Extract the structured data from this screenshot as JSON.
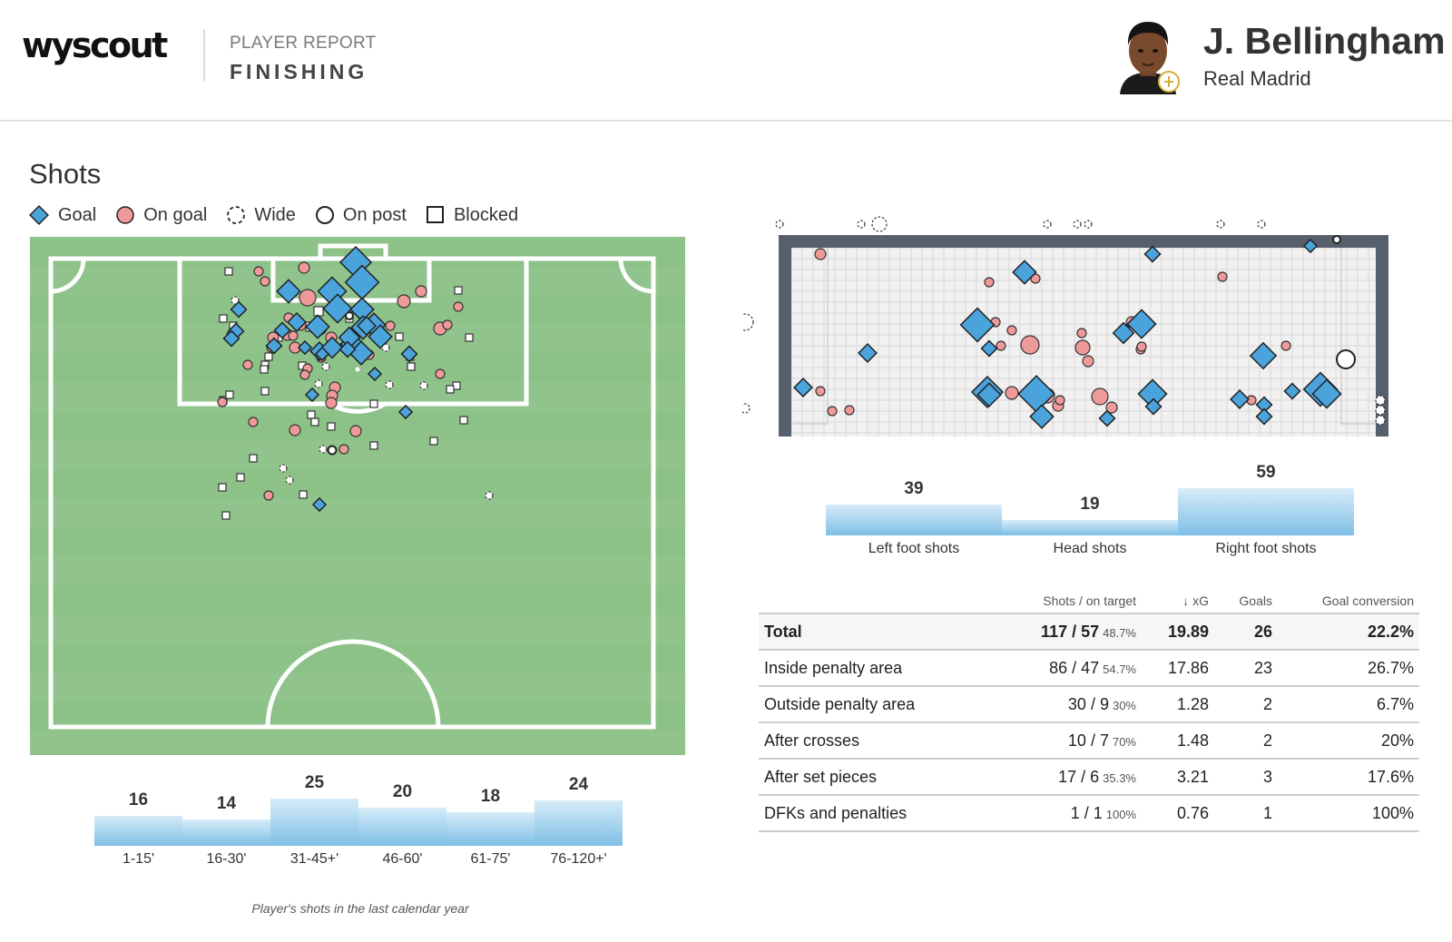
{
  "header": {
    "logo": "wyscout",
    "report_label": "PLAYER REPORT",
    "report_title": "FINISHING",
    "player_name": "J. Bellingham",
    "player_team": "Real Madrid"
  },
  "shots": {
    "title": "Shots",
    "legend": [
      {
        "label": "Goal",
        "icon": "diamond-icon",
        "color": "#4ba3dc"
      },
      {
        "label": "On goal",
        "icon": "circle-icon",
        "color": "#ef9a9a"
      },
      {
        "label": "Wide",
        "icon": "dashed-circle-icon",
        "color": "#333333"
      },
      {
        "label": "On post",
        "icon": "ring-icon",
        "color": "#333333"
      },
      {
        "label": "Blocked",
        "icon": "square-icon",
        "color": "#333333"
      }
    ],
    "footnote": "Player's shots in the last calendar year"
  },
  "colors": {
    "goal": "#4ba3dc",
    "on_goal": "#ef9a9a",
    "pitch": "#8dc28a",
    "goal_frame": "#56606d"
  },
  "chart_data": [
    {
      "type": "bar",
      "title": "",
      "categories": [
        "1-15'",
        "16-30'",
        "31-45+'",
        "46-60'",
        "61-75'",
        "76-120+'"
      ],
      "values": [
        16,
        14,
        25,
        20,
        18,
        24
      ],
      "ylim": [
        0,
        25
      ]
    },
    {
      "type": "bar",
      "title": "",
      "categories": [
        "Left foot shots",
        "Head shots",
        "Right foot shots"
      ],
      "values": [
        39,
        19,
        59
      ],
      "ylim": [
        0,
        59
      ]
    }
  ],
  "table": {
    "headers": [
      "Shots / on target",
      "↓ xG",
      "Goals",
      "Goal conversion"
    ],
    "rows": [
      {
        "label": "Total",
        "shots": "117 / 57",
        "pct": "48.7%",
        "xg": "19.89",
        "goals": "26",
        "conversion": "22.2%"
      },
      {
        "label": "Inside penalty area",
        "shots": "86 / 47",
        "pct": "54.7%",
        "xg": "17.86",
        "goals": "23",
        "conversion": "26.7%"
      },
      {
        "label": "Outside penalty area",
        "shots": "30 / 9",
        "pct": "30%",
        "xg": "1.28",
        "goals": "2",
        "conversion": "6.7%"
      },
      {
        "label": "After crosses",
        "shots": "10 / 7",
        "pct": "70%",
        "xg": "1.48",
        "goals": "2",
        "conversion": "20%"
      },
      {
        "label": "After set pieces",
        "shots": "17 / 6",
        "pct": "35.3%",
        "xg": "3.21",
        "goals": "3",
        "conversion": "17.6%"
      },
      {
        "label": "DFKs and penalties",
        "shots": "1 / 1",
        "pct": "100%",
        "xg": "0.76",
        "goals": "1",
        "conversion": "100%"
      }
    ]
  }
}
